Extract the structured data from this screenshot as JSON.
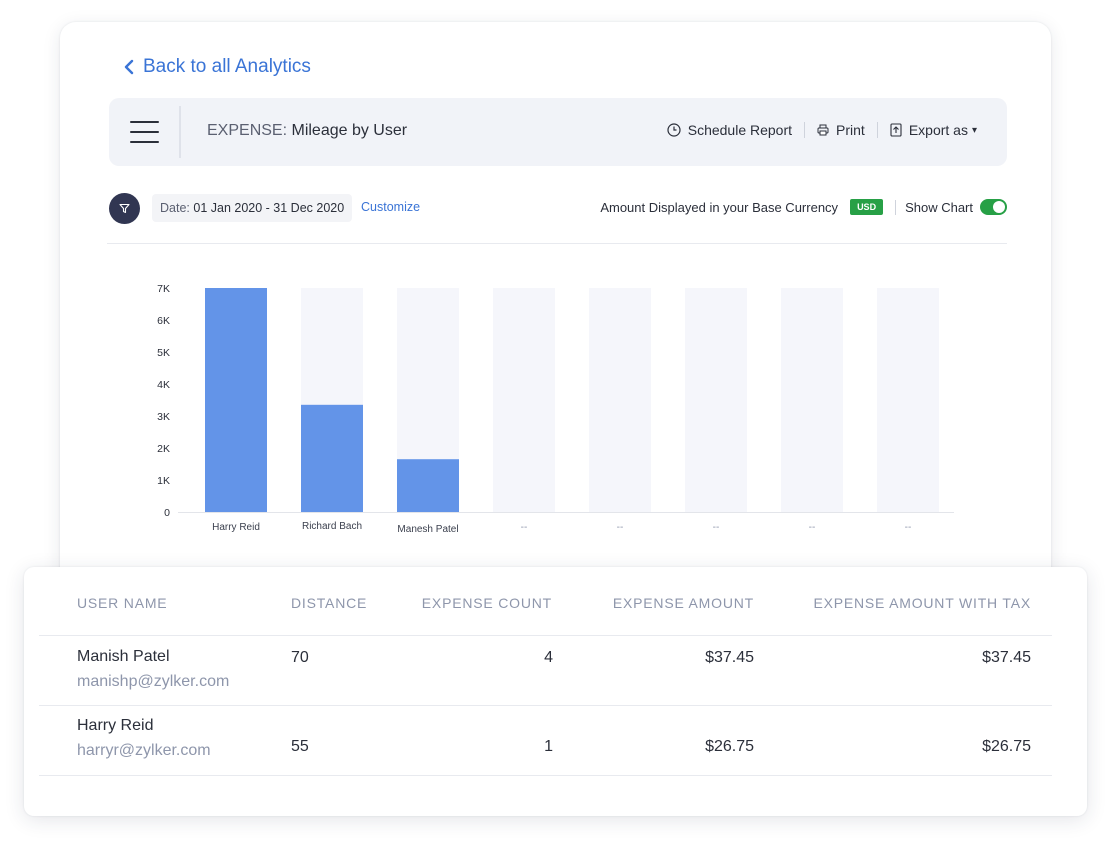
{
  "nav": {
    "back_label": "Back to all Analytics"
  },
  "header": {
    "report_prefix": "EXPENSE:",
    "report_name": "Mileage by User",
    "schedule_label": "Schedule Report",
    "print_label": "Print",
    "export_label": "Export as"
  },
  "filters": {
    "date_label": "Date:",
    "date_range": "01 Jan 2020 - 31 Dec 2020",
    "customize_label": "Customize",
    "currency_text": "Amount Displayed in your Base Currency",
    "currency_code": "USD",
    "show_chart_label": "Show Chart",
    "show_chart_on": true
  },
  "colors": {
    "accent": "#3a74d6",
    "bar": "#6394e8",
    "bar_track": "#f5f6fb",
    "success": "#27a046"
  },
  "chart_data": {
    "type": "bar",
    "categories": [
      "Harry Reid",
      "Richard Bach",
      "Manesh Patel",
      "--",
      "--",
      "--",
      "--",
      "--"
    ],
    "values": [
      7000,
      3350,
      1650,
      0,
      0,
      0,
      0,
      0
    ],
    "y_ticks": [
      "0",
      "1K",
      "2K",
      "3K",
      "4K",
      "5K",
      "6K",
      "7K"
    ],
    "ylim": [
      0,
      7000
    ],
    "grid": false,
    "legend": "none"
  },
  "table": {
    "columns": [
      "USER NAME",
      "DISTANCE",
      "EXPENSE COUNT",
      "EXPENSE AMOUNT",
      "EXPENSE AMOUNT WITH TAX"
    ],
    "rows": [
      {
        "name": "Manish Patel",
        "email": "manishp@zylker.com",
        "distance": "70",
        "count": "4",
        "amount": "$37.45",
        "amount_tax": "$37.45"
      },
      {
        "name": "Harry Reid",
        "email": "harryr@zylker.com",
        "distance": "55",
        "count": "1",
        "amount": "$26.75",
        "amount_tax": "$26.75"
      }
    ]
  }
}
